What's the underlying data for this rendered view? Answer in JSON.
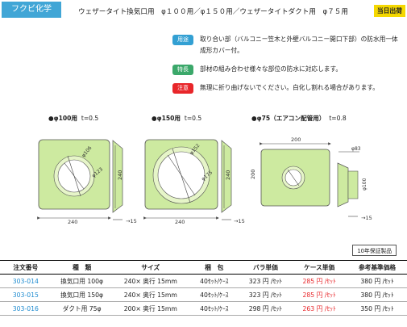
{
  "header": {
    "brand": "フクビ化学",
    "title": "ウェザータイト換気口用　φ１００用／φ１５０用／ウェザータイトダクト用　φ７５用",
    "same_day": "当日出荷"
  },
  "info": [
    {
      "tag": "用途",
      "color": "#33a0d3",
      "text": "取り合い部（バルコニー笠木と外壁バルコニー開口下部）の防水用一体成形カバー付。"
    },
    {
      "tag": "特長",
      "color": "#3ba86a",
      "text": "部材の組み合わせ様々な部位の防水に対応します。"
    },
    {
      "tag": "注意",
      "color": "#e8262a",
      "text": "無理に折り曲げないでください。白化し割れる場合があります。"
    }
  ],
  "sections": [
    {
      "name": "●φ100用",
      "t": "t=0.5",
      "w": "240",
      "h": "240",
      "dim1": "φ106",
      "dim2": "φ123",
      "side": "15"
    },
    {
      "name": "●φ150用",
      "t": "t=0.5",
      "w": "240",
      "h": "240",
      "dim1": "φ152",
      "dim2": "φ175",
      "side": "15"
    },
    {
      "name": "●φ75（エアコン配管用）",
      "t": "t=0.8",
      "w": "200",
      "h": "200",
      "dim1": "φ83",
      "dim2": "φ100",
      "side": "15"
    }
  ],
  "warranty": "10年保証製品",
  "table": {
    "headers": [
      "注文番号",
      "種　類",
      "サイズ",
      "梱　包",
      "バラ単価",
      "ケース単価",
      "参考基準価格"
    ],
    "rows": [
      [
        "303-014",
        "換気口用 100φ",
        "240× 奥行 15mm",
        "40ｾｯﾄ/ｹｰｽ",
        "323 円 /ｾｯﾄ",
        "285 円 /ｾｯﾄ",
        "380 円 /ｾｯﾄ"
      ],
      [
        "303-015",
        "換気口用 150φ",
        "240× 奥行 15mm",
        "40ｾｯﾄ/ｹｰｽ",
        "323 円 /ｾｯﾄ",
        "285 円 /ｾｯﾄ",
        "380 円 /ｾｯﾄ"
      ],
      [
        "303-016",
        "ダクト用 75φ",
        "200× 奥行 15mm",
        "40ｾｯﾄ/ｹｰｽ",
        "298 円 /ｾｯﾄ",
        "263 円 /ｾｯﾄ",
        "350 円 /ｾｯﾄ"
      ]
    ]
  },
  "colors": {
    "panel": "#cdeaa0",
    "panel_stroke": "#555555",
    "brand": "#41a6d6",
    "accent_red": "#e8262a"
  }
}
